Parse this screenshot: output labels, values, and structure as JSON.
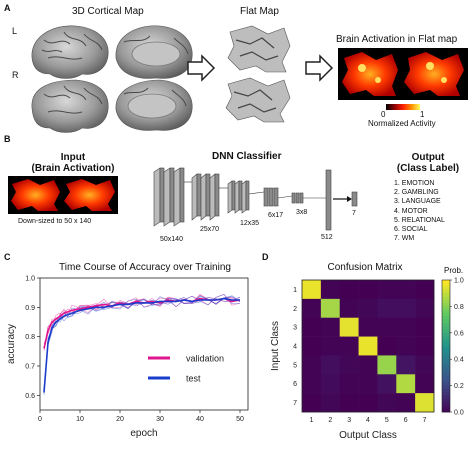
{
  "panel_a": {
    "letter": "A",
    "title_cortical": "3D Cortical Map",
    "title_flat": "Flat Map",
    "title_activation": "Brain Activation in Flat map",
    "hemi_left": "L",
    "hemi_right": "R",
    "colorbar_min": "0",
    "colorbar_max": "1",
    "colorbar_label": "Normalized  Activity",
    "colorbar_colors": [
      "#000000",
      "#8b0000",
      "#ff2000",
      "#ff9000",
      "#ffff60"
    ]
  },
  "panel_b": {
    "letter": "B",
    "input_title": "Input",
    "input_subtitle": "(Brain Activation)",
    "input_note": "Down-sized to 50 x 140",
    "classifier_title": "DNN Classifier",
    "output_title": "Output",
    "output_subtitle": "(Class Label)",
    "layer_labels": [
      "50x140",
      "25x70",
      "12x35",
      "6x17",
      "3x8",
      "512",
      "7"
    ],
    "classes": [
      "1.   EMOTION",
      "2.   GAMBLING",
      "3.   LANGUAGE",
      "4.   MOTOR",
      "5.   RELATIONAL",
      "6.   SOCIAL",
      "7.   WM"
    ]
  },
  "panel_c": {
    "letter": "C",
    "chart_data": {
      "type": "line",
      "title": "Time Course of Accuracy over Training",
      "xlabel": "epoch",
      "ylabel": "accuracy",
      "xlim": [
        0,
        52
      ],
      "ylim": [
        0.55,
        1.0
      ],
      "xticks": [
        0,
        10,
        20,
        30,
        40,
        50
      ],
      "yticks": [
        0.6,
        0.7,
        0.8,
        0.9,
        1.0
      ],
      "ytick_labels": [
        "0.6",
        "0.7",
        "0.8",
        "0.9",
        "1.0"
      ],
      "legend_position": "lower-right",
      "series": [
        {
          "name": "validation",
          "color": "#e0148c",
          "x": [
            1,
            2,
            3,
            4,
            5,
            6,
            7,
            8,
            10,
            12,
            14,
            16,
            18,
            20,
            22,
            24,
            26,
            28,
            30,
            32,
            34,
            36,
            38,
            40,
            42,
            44,
            46,
            48,
            50
          ],
          "y": [
            0.76,
            0.82,
            0.85,
            0.86,
            0.87,
            0.88,
            0.885,
            0.89,
            0.895,
            0.9,
            0.905,
            0.91,
            0.905,
            0.915,
            0.91,
            0.92,
            0.915,
            0.92,
            0.915,
            0.925,
            0.92,
            0.925,
            0.92,
            0.93,
            0.925,
            0.925,
            0.93,
            0.92,
            0.925
          ]
        },
        {
          "name": "test",
          "color": "#1a3ccc",
          "x": [
            1,
            2,
            3,
            4,
            5,
            6,
            7,
            8,
            10,
            12,
            14,
            16,
            18,
            20,
            22,
            24,
            26,
            28,
            30,
            32,
            34,
            36,
            38,
            40,
            42,
            44,
            46,
            48,
            50
          ],
          "y": [
            0.61,
            0.78,
            0.83,
            0.85,
            0.86,
            0.87,
            0.875,
            0.88,
            0.89,
            0.895,
            0.9,
            0.9,
            0.905,
            0.91,
            0.91,
            0.915,
            0.915,
            0.915,
            0.92,
            0.92,
            0.92,
            0.925,
            0.92,
            0.925,
            0.925,
            0.925,
            0.93,
            0.925,
            0.925
          ]
        }
      ]
    }
  },
  "panel_d": {
    "letter": "D",
    "chart_data": {
      "type": "heatmap",
      "title": "Confusion Matrix",
      "xlabel": "Output  Class",
      "ylabel": "Input  Class",
      "categories": [
        "1",
        "2",
        "3",
        "4",
        "5",
        "6",
        "7"
      ],
      "colorbar_title": "Prob.",
      "colorbar_ticks": [
        "1.0",
        "0.8",
        "0.6",
        "0.4",
        "0.2",
        "0.0"
      ],
      "matrix": [
        [
          0.97,
          0.01,
          0.0,
          0.0,
          0.01,
          0.01,
          0.0
        ],
        [
          0.01,
          0.86,
          0.01,
          0.02,
          0.04,
          0.04,
          0.02
        ],
        [
          0.0,
          0.01,
          0.96,
          0.01,
          0.01,
          0.01,
          0.0
        ],
        [
          0.0,
          0.01,
          0.01,
          0.97,
          0.0,
          0.01,
          0.0
        ],
        [
          0.01,
          0.04,
          0.02,
          0.01,
          0.84,
          0.06,
          0.02
        ],
        [
          0.01,
          0.03,
          0.01,
          0.01,
          0.05,
          0.88,
          0.01
        ],
        [
          0.0,
          0.02,
          0.0,
          0.0,
          0.02,
          0.01,
          0.95
        ]
      ]
    }
  }
}
